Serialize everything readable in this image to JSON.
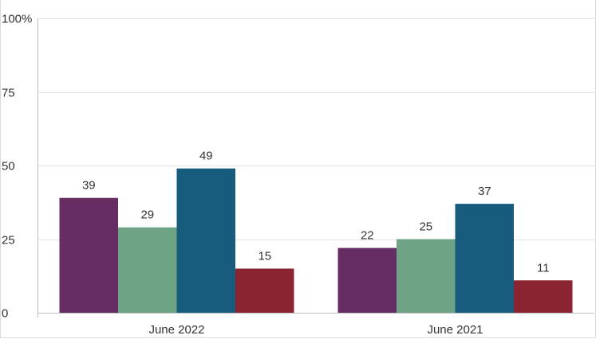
{
  "chart_data": {
    "type": "bar",
    "categories": [
      "June 2022",
      "June 2021"
    ],
    "series": [
      {
        "values": [
          39,
          22
        ],
        "color": "#662d63"
      },
      {
        "values": [
          29,
          25
        ],
        "color": "#6fa386"
      },
      {
        "values": [
          49,
          37
        ],
        "color": "#175c7d"
      },
      {
        "values": [
          15,
          11
        ],
        "color": "#8a2430"
      }
    ],
    "ylim": [
      0,
      100
    ],
    "yticks": [
      {
        "value": 0,
        "label": "0"
      },
      {
        "value": 25,
        "label": "25"
      },
      {
        "value": 50,
        "label": "50"
      },
      {
        "value": 75,
        "label": "75"
      },
      {
        "value": 100,
        "label": "100%"
      }
    ],
    "grid": true,
    "data_labels": true
  }
}
